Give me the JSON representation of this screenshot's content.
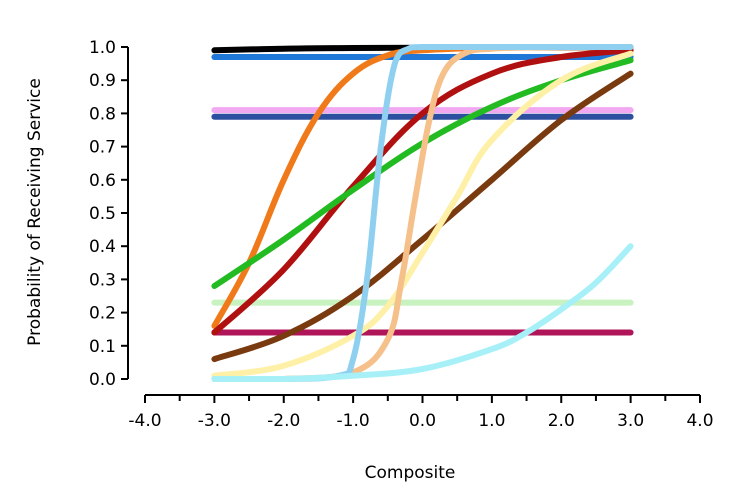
{
  "chart_data": {
    "type": "line",
    "xlabel": "Composite",
    "ylabel": "Probability of Receiving Service",
    "xlim": [
      -4.0,
      4.0
    ],
    "ylim": [
      0.0,
      1.0
    ],
    "x_ticks": [
      "-4.0",
      "-3.0",
      "-2.0",
      "-1.0",
      "0.0",
      "1.0",
      "2.0",
      "3.0",
      "4.0"
    ],
    "y_ticks": [
      "0.0",
      "0.1",
      "0.2",
      "0.3",
      "0.4",
      "0.5",
      "0.6",
      "0.7",
      "0.8",
      "0.9",
      "1.0"
    ],
    "grid": false,
    "legend": "none",
    "series": [
      {
        "color": "#000000",
        "x": [
          -3.0,
          -2.0,
          -1.0,
          0.0,
          1.0,
          2.0,
          3.0
        ],
        "y": [
          0.99,
          0.995,
          0.997,
          0.998,
          0.999,
          0.999,
          0.999
        ]
      },
      {
        "color": "#1f78d8",
        "x": [
          -3.0,
          -2.0,
          -1.0,
          0.0,
          1.0,
          2.0,
          3.0
        ],
        "y": [
          0.97,
          0.97,
          0.97,
          0.97,
          0.97,
          0.97,
          0.97
        ]
      },
      {
        "color": "#f2a8f0",
        "x": [
          -3.0,
          -2.0,
          -1.0,
          0.0,
          1.0,
          2.0,
          3.0
        ],
        "y": [
          0.81,
          0.81,
          0.81,
          0.81,
          0.81,
          0.81,
          0.81
        ]
      },
      {
        "color": "#2d4fa0",
        "x": [
          -3.0,
          -2.0,
          -1.0,
          0.0,
          1.0,
          2.0,
          3.0
        ],
        "y": [
          0.79,
          0.79,
          0.79,
          0.79,
          0.79,
          0.79,
          0.79
        ]
      },
      {
        "color": "#c8f2c0",
        "x": [
          -3.0,
          -2.0,
          -1.0,
          0.0,
          1.0,
          2.0,
          3.0
        ],
        "y": [
          0.23,
          0.23,
          0.23,
          0.23,
          0.23,
          0.23,
          0.23
        ]
      },
      {
        "color": "#b0155a",
        "x": [
          -3.0,
          -2.0,
          -1.0,
          0.0,
          1.0,
          2.0,
          3.0
        ],
        "y": [
          0.14,
          0.14,
          0.14,
          0.14,
          0.14,
          0.14,
          0.14
        ]
      },
      {
        "color": "#f07a1a",
        "x": [
          -3.0,
          -2.5,
          -2.0,
          -1.5,
          -1.0,
          -0.5,
          0.0,
          1.0,
          2.0,
          3.0
        ],
        "y": [
          0.16,
          0.35,
          0.6,
          0.8,
          0.92,
          0.975,
          0.99,
          0.998,
          0.999,
          1.0
        ]
      },
      {
        "color": "#b01010",
        "x": [
          -3.0,
          -2.0,
          -1.0,
          0.0,
          1.0,
          2.0,
          3.0
        ],
        "y": [
          0.14,
          0.33,
          0.58,
          0.8,
          0.92,
          0.97,
          0.99
        ]
      },
      {
        "color": "#22bb22",
        "x": [
          -3.0,
          -2.0,
          -1.0,
          0.0,
          1.0,
          2.0,
          3.0
        ],
        "y": [
          0.28,
          0.42,
          0.57,
          0.71,
          0.82,
          0.9,
          0.96
        ]
      },
      {
        "color": "#7a3a10",
        "x": [
          -3.0,
          -2.0,
          -1.0,
          0.0,
          1.0,
          2.0,
          3.0
        ],
        "y": [
          0.06,
          0.13,
          0.25,
          0.42,
          0.6,
          0.78,
          0.92
        ]
      },
      {
        "color": "#fff0a8",
        "x": [
          -3.0,
          -2.0,
          -1.0,
          -0.5,
          0.0,
          0.5,
          1.0,
          2.0,
          3.0
        ],
        "y": [
          0.01,
          0.04,
          0.13,
          0.22,
          0.38,
          0.55,
          0.72,
          0.9,
          0.98
        ]
      },
      {
        "color": "#f5c08a",
        "x": [
          -3.0,
          -2.0,
          -1.0,
          -0.5,
          -0.3,
          -0.1,
          0.1,
          0.3,
          0.6,
          1.0,
          2.0,
          3.0
        ],
        "y": [
          0.0,
          0.0,
          0.02,
          0.12,
          0.3,
          0.55,
          0.78,
          0.92,
          0.98,
          0.995,
          1.0,
          1.0
        ]
      },
      {
        "color": "#8fd0f0",
        "x": [
          -3.0,
          -2.0,
          -1.2,
          -1.0,
          -0.8,
          -0.6,
          -0.4,
          -0.2,
          0.0,
          1.0,
          2.0,
          3.0
        ],
        "y": [
          0.0,
          0.0,
          0.01,
          0.06,
          0.3,
          0.7,
          0.95,
          0.995,
          1.0,
          1.0,
          1.0,
          1.0
        ]
      },
      {
        "color": "#a8f0f8",
        "x": [
          -3.0,
          -2.0,
          -1.0,
          0.0,
          1.0,
          1.5,
          2.0,
          2.5,
          3.0
        ],
        "y": [
          0.0,
          0.0,
          0.01,
          0.03,
          0.09,
          0.14,
          0.21,
          0.29,
          0.4
        ]
      }
    ]
  }
}
